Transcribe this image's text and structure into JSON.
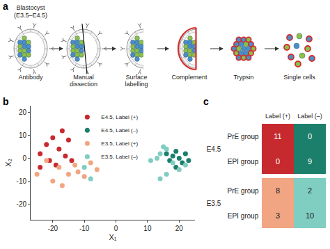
{
  "diagram": {
    "label": "a",
    "title": "Blastocyst",
    "subtitle": "(E3.5–E4.5)",
    "steps": [
      "Antibody",
      "Manual dissection",
      "Surface labelling",
      "Complement",
      "Trypsin",
      "Single cells"
    ]
  },
  "chart_data": {
    "label": "b",
    "type": "scatter",
    "x_label": "X₁",
    "y_label": "X₂",
    "xlim": [
      -27,
      25
    ],
    "ylim": [
      -27,
      23
    ],
    "xticks": [
      -20,
      -10,
      0,
      10,
      20
    ],
    "yticks": [
      -20,
      -10,
      0,
      10,
      20
    ],
    "grid": false,
    "legend": "top",
    "series": [
      {
        "name": "E4.5, Label (+)",
        "color": "#c62a2f",
        "x": [
          -17,
          -20,
          -15,
          -22,
          -18,
          -24,
          -16,
          -21,
          -19,
          -24,
          -14
        ],
        "values": [
          12,
          9,
          8,
          6,
          4,
          2,
          1,
          -1,
          -3,
          -4,
          -1
        ]
      },
      {
        "name": "E4.5, Label (–)",
        "color": "#1b7f6c",
        "x": [
          16,
          18,
          20,
          19,
          22,
          17,
          21,
          23,
          19
        ],
        "values": [
          2,
          1,
          0,
          3,
          2,
          -1,
          -2,
          -1,
          -4
        ]
      },
      {
        "name": "E3.5, Label (+)",
        "color": "#f2a582",
        "x": [
          -22,
          -18,
          -15,
          -10,
          -13,
          -20,
          -12,
          -25,
          -8,
          -6,
          -17
        ],
        "values": [
          -1,
          -4,
          -7,
          -8,
          -3,
          -10,
          -6,
          -7,
          -2,
          -5,
          -12
        ]
      },
      {
        "name": "E3.5, Label (–)",
        "color": "#80cdc1",
        "x": [
          15,
          16,
          14,
          13,
          18,
          20,
          16,
          14,
          22,
          11,
          -10,
          -8
        ],
        "values": [
          5,
          4,
          2,
          0,
          -2,
          -5,
          -7,
          -9,
          -3,
          -1,
          -4,
          -9
        ]
      }
    ]
  },
  "table": {
    "label": "c",
    "columns": [
      "Label (+)",
      "Label (–)"
    ],
    "groups": [
      {
        "name": "E4.5",
        "colors": [
          "#c62a2f",
          "#1b7f6c"
        ],
        "rows": [
          {
            "name": "PrE group",
            "values": [
              11,
              0
            ]
          },
          {
            "name": "EPI group",
            "values": [
              0,
              9
            ]
          }
        ]
      },
      {
        "name": "E3.5",
        "colors": [
          "#f2a582",
          "#80cdc1"
        ],
        "rows": [
          {
            "name": "PrE group",
            "values": [
              8,
              2
            ]
          },
          {
            "name": "EPI group",
            "values": [
              3,
              10
            ]
          }
        ]
      }
    ]
  }
}
